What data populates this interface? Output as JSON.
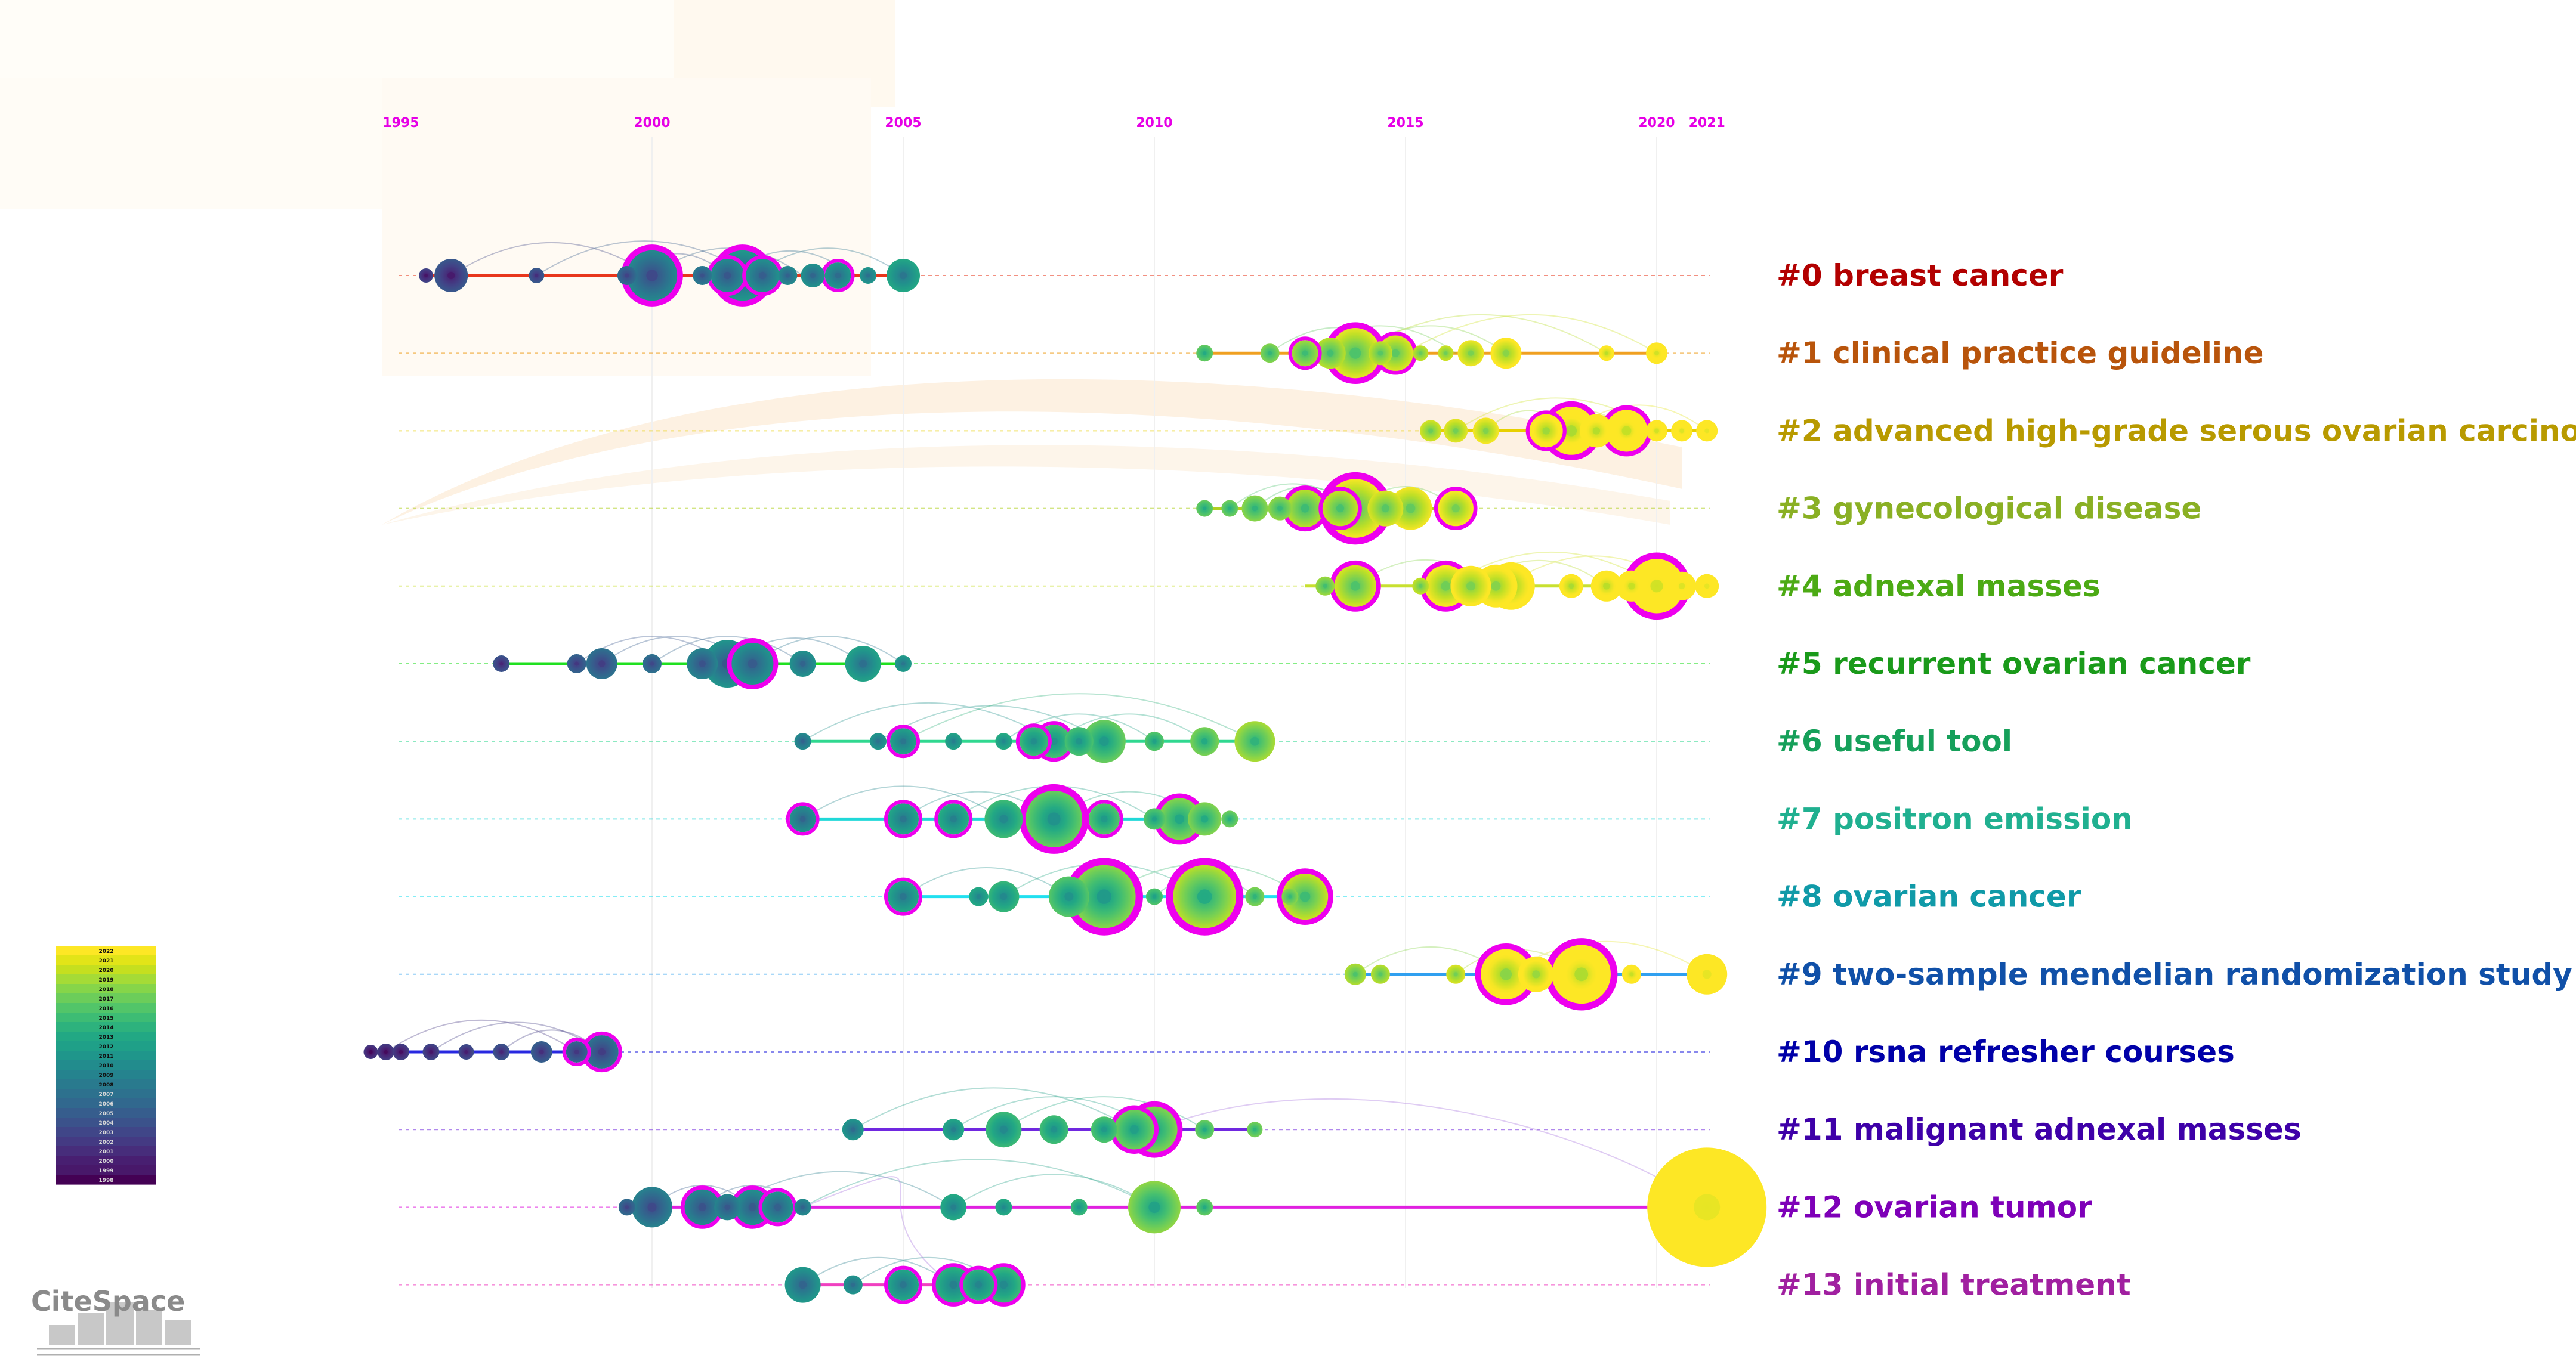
{
  "chart_data": {
    "type": "timeline",
    "axis_years": [
      1995,
      2000,
      2005,
      2010,
      2015,
      2020,
      2021
    ],
    "x_range": [
      1995,
      2021
    ],
    "clusters": [
      {
        "id": "#0",
        "label": "breast cancer",
        "color": "#b20000",
        "line_color": "#e8361c",
        "span": [
          1995.5,
          2005
        ],
        "nodes": [
          [
            1995.5,
            12,
            0
          ],
          [
            1996,
            28,
            0
          ],
          [
            1997.7,
            13,
            0
          ],
          [
            1999.5,
            16,
            0
          ],
          [
            2000,
            44,
            1
          ],
          [
            2001,
            16,
            0
          ],
          [
            2001.5,
            28,
            1
          ],
          [
            2001.8,
            44,
            1
          ],
          [
            2002.2,
            28,
            1
          ],
          [
            2002.7,
            16,
            0
          ],
          [
            2003.2,
            20,
            0
          ],
          [
            2003.7,
            22,
            1
          ],
          [
            2004.3,
            14,
            0
          ],
          [
            2005,
            28,
            0
          ]
        ]
      },
      {
        "id": "#1",
        "label": "clinical practice guideline",
        "color": "#b8540b",
        "line_color": "#f0a020",
        "span": [
          2011,
          2020
        ],
        "nodes": [
          [
            2011,
            14,
            0
          ],
          [
            2012.3,
            16,
            0
          ],
          [
            2013,
            22,
            1
          ],
          [
            2013.5,
            26,
            0
          ],
          [
            2014,
            44,
            1
          ],
          [
            2014.5,
            20,
            0
          ],
          [
            2014.8,
            30,
            1
          ],
          [
            2015.3,
            13,
            0
          ],
          [
            2015.8,
            13,
            0
          ],
          [
            2016.3,
            22,
            0
          ],
          [
            2017,
            26,
            0
          ],
          [
            2019,
            13,
            0
          ],
          [
            2020,
            18,
            0
          ]
        ]
      },
      {
        "id": "#2",
        "label": "advanced high-grade serous ovarian carcinoma",
        "color": "#b89a00",
        "line_color": "#e8d000",
        "span": [
          2015.5,
          2021
        ],
        "nodes": [
          [
            2015.5,
            18,
            0
          ],
          [
            2016,
            20,
            0
          ],
          [
            2016.6,
            22,
            0
          ],
          [
            2017.8,
            28,
            1
          ],
          [
            2018.3,
            42,
            1
          ],
          [
            2018.8,
            28,
            0
          ],
          [
            2019.4,
            36,
            1
          ],
          [
            2020,
            18,
            0
          ],
          [
            2020.5,
            18,
            0
          ],
          [
            2021,
            18,
            0
          ]
        ]
      },
      {
        "id": "#3",
        "label": "gynecological disease",
        "color": "#8ab024",
        "line_color": "#b0d020",
        "span": [
          2011,
          2016
        ],
        "nodes": [
          [
            2011,
            14,
            0
          ],
          [
            2011.5,
            14,
            0
          ],
          [
            2012,
            22,
            0
          ],
          [
            2012.5,
            20,
            0
          ],
          [
            2013,
            32,
            1
          ],
          [
            2013.7,
            30,
            1
          ],
          [
            2014,
            52,
            1
          ],
          [
            2014.6,
            30,
            0
          ],
          [
            2015.1,
            36,
            0
          ],
          [
            2016,
            30,
            1
          ]
        ]
      },
      {
        "id": "#4",
        "label": "adnexal masses",
        "color": "#4caa14",
        "line_color": "#c8e030",
        "span": [
          2013,
          2021
        ],
        "nodes": [
          [
            2013.4,
            16,
            0
          ],
          [
            2014,
            36,
            1
          ],
          [
            2015.3,
            14,
            0
          ],
          [
            2015.8,
            36,
            1
          ],
          [
            2016.3,
            34,
            0
          ],
          [
            2016.8,
            36,
            0
          ],
          [
            2017.1,
            40,
            0
          ],
          [
            2018.3,
            20,
            0
          ],
          [
            2019,
            26,
            0
          ],
          [
            2019.5,
            26,
            0
          ],
          [
            2020,
            48,
            1
          ],
          [
            2020.5,
            24,
            0
          ],
          [
            2021,
            20,
            0
          ]
        ]
      },
      {
        "id": "#5",
        "label": "recurrent ovarian cancer",
        "color": "#1a9a1a",
        "line_color": "#20e020",
        "span": [
          1997,
          2005
        ],
        "nodes": [
          [
            1997,
            14,
            0
          ],
          [
            1998.5,
            16,
            0
          ],
          [
            1999,
            26,
            0
          ],
          [
            2000,
            16,
            0
          ],
          [
            2001,
            26,
            0
          ],
          [
            2001.5,
            40,
            0
          ],
          [
            2002,
            36,
            1
          ],
          [
            2003,
            22,
            0
          ],
          [
            2004.2,
            30,
            0
          ],
          [
            2005,
            14,
            0
          ]
        ]
      },
      {
        "id": "#6",
        "label": "useful tool",
        "color": "#16a05a",
        "line_color": "#30d890",
        "span": [
          2003,
          2012
        ],
        "nodes": [
          [
            2003,
            14,
            0
          ],
          [
            2004.5,
            14,
            0
          ],
          [
            2005,
            22,
            1
          ],
          [
            2006,
            14,
            0
          ],
          [
            2007,
            14,
            0
          ],
          [
            2007.6,
            24,
            1
          ],
          [
            2008,
            28,
            1
          ],
          [
            2008.5,
            24,
            0
          ],
          [
            2009,
            36,
            0
          ],
          [
            2010,
            16,
            0
          ],
          [
            2011,
            24,
            0
          ],
          [
            2012,
            34,
            0
          ]
        ]
      },
      {
        "id": "#7",
        "label": "positron emission",
        "color": "#20b090",
        "line_color": "#20d8d8",
        "span": [
          2003,
          2011
        ],
        "nodes": [
          [
            2003,
            22,
            1
          ],
          [
            2005,
            26,
            1
          ],
          [
            2006,
            26,
            1
          ],
          [
            2007,
            32,
            0
          ],
          [
            2008,
            50,
            1
          ],
          [
            2009,
            26,
            1
          ],
          [
            2010,
            18,
            0
          ],
          [
            2010.5,
            36,
            1
          ],
          [
            2011,
            28,
            0
          ],
          [
            2011.5,
            14,
            0
          ]
        ]
      },
      {
        "id": "#8",
        "label": "ovarian cancer",
        "color": "#109aa8",
        "line_color": "#20e0f0",
        "span": [
          2005,
          2013.5
        ],
        "nodes": [
          [
            2005,
            26,
            1
          ],
          [
            2006.5,
            16,
            0
          ],
          [
            2007,
            26,
            0
          ],
          [
            2008.3,
            34,
            0
          ],
          [
            2009,
            56,
            1
          ],
          [
            2010,
            14,
            0
          ],
          [
            2011,
            56,
            1
          ],
          [
            2012,
            16,
            0
          ],
          [
            2012.7,
            14,
            0
          ],
          [
            2013,
            40,
            1
          ]
        ]
      },
      {
        "id": "#9",
        "label": "two-sample mendelian randomization study",
        "color": "#1050a8",
        "line_color": "#30a0f0",
        "span": [
          2014,
          2021
        ],
        "nodes": [
          [
            2014,
            18,
            0
          ],
          [
            2014.5,
            16,
            0
          ],
          [
            2016,
            16,
            0
          ],
          [
            2017,
            44,
            1
          ],
          [
            2017.6,
            30,
            0
          ],
          [
            2018.5,
            52,
            1
          ],
          [
            2019.5,
            16,
            0
          ],
          [
            2021,
            34,
            0
          ]
        ]
      },
      {
        "id": "#10",
        "label": "rsna refresher courses",
        "color": "#0000a8",
        "line_color": "#2828e0",
        "span": [
          1994.4,
          1999
        ],
        "nodes": [
          [
            1994.4,
            12,
            0
          ],
          [
            1994.7,
            14,
            0
          ],
          [
            1995,
            14,
            0
          ],
          [
            1995.6,
            14,
            0
          ],
          [
            1996.3,
            13,
            0
          ],
          [
            1997,
            14,
            0
          ],
          [
            1997.8,
            18,
            0
          ],
          [
            1998.5,
            18,
            1
          ],
          [
            1999,
            28,
            1
          ]
        ]
      },
      {
        "id": "#11",
        "label": "malignant adnexal masses",
        "color": "#3e00a8",
        "line_color": "#7028e0",
        "span": [
          2004,
          2012
        ],
        "nodes": [
          [
            2004,
            18,
            0
          ],
          [
            2006,
            18,
            0
          ],
          [
            2007,
            30,
            0
          ],
          [
            2008,
            24,
            0
          ],
          [
            2009,
            22,
            0
          ],
          [
            2009.6,
            34,
            1
          ],
          [
            2010,
            40,
            1
          ],
          [
            2011,
            16,
            0
          ],
          [
            2012,
            13,
            0
          ]
        ]
      },
      {
        "id": "#12",
        "label": "ovarian tumor",
        "color": "#7e00b8",
        "line_color": "#e020e0",
        "span": [
          1999.5,
          2021
        ],
        "nodes": [
          [
            1999.5,
            14,
            0
          ],
          [
            2000,
            34,
            0
          ],
          [
            2001,
            30,
            1
          ],
          [
            2001.5,
            22,
            0
          ],
          [
            2002,
            30,
            1
          ],
          [
            2002.5,
            26,
            1
          ],
          [
            2003,
            14,
            0
          ],
          [
            2006,
            22,
            0
          ],
          [
            2007,
            14,
            0
          ],
          [
            2008.5,
            14,
            0
          ],
          [
            2010,
            44,
            0
          ],
          [
            2011,
            14,
            0
          ],
          [
            2021,
            100,
            0
          ]
        ]
      },
      {
        "id": "#13",
        "label": "initial treatment",
        "color": "#a020a0",
        "line_color": "#f040c0",
        "span": [
          2003,
          2007
        ],
        "nodes": [
          [
            2003,
            30,
            0
          ],
          [
            2004,
            16,
            0
          ],
          [
            2005,
            26,
            1
          ],
          [
            2006,
            30,
            1
          ],
          [
            2006.5,
            26,
            1
          ],
          [
            2007,
            30,
            1
          ]
        ]
      }
    ],
    "links": [
      [
        0,
        1999.5,
        2001.5
      ],
      [
        0,
        1996,
        2000
      ],
      [
        0,
        2001.5,
        2004
      ],
      [
        0,
        2000,
        2003
      ],
      [
        0,
        1997.7,
        2002
      ],
      [
        0,
        2002,
        2005
      ],
      [
        1,
        2013,
        2016
      ],
      [
        1,
        2014,
        2017
      ],
      [
        1,
        2012.3,
        2015
      ],
      [
        1,
        2014,
        2019
      ],
      [
        1,
        2015,
        2020
      ],
      [
        2,
        2016.6,
        2018.3
      ],
      [
        2,
        2017.8,
        2019.4
      ],
      [
        2,
        2016,
        2020
      ],
      [
        2,
        2018.3,
        2021
      ],
      [
        3,
        2012,
        2014
      ],
      [
        3,
        2013,
        2015
      ],
      [
        3,
        2011.5,
        2014
      ],
      [
        3,
        2014,
        2016
      ],
      [
        4,
        2014,
        2016.8
      ],
      [
        4,
        2015.8,
        2020
      ],
      [
        4,
        2016.3,
        2019
      ],
      [
        4,
        2017,
        2020.5
      ],
      [
        5,
        1998.5,
        2001.5
      ],
      [
        5,
        1999,
        2002
      ],
      [
        5,
        2000,
        2003
      ],
      [
        5,
        2001.5,
        2004.2
      ],
      [
        5,
        2002,
        2005
      ],
      [
        6,
        2003,
        2008
      ],
      [
        6,
        2004.5,
        2009
      ],
      [
        6,
        2007,
        2010
      ],
      [
        6,
        2008,
        2011
      ],
      [
        6,
        2005,
        2012
      ],
      [
        7,
        2003,
        2007
      ],
      [
        7,
        2005,
        2008
      ],
      [
        7,
        2006,
        2010
      ],
      [
        7,
        2008,
        2011
      ],
      [
        8,
        2005,
        2008.3
      ],
      [
        8,
        2007,
        2011
      ],
      [
        8,
        2009,
        2013
      ],
      [
        8,
        2010,
        2012
      ],
      [
        9,
        2014,
        2017
      ],
      [
        9,
        2016,
        2018.5
      ],
      [
        9,
        2017,
        2021
      ],
      [
        10,
        1994.7,
        1998.5
      ],
      [
        10,
        1995.6,
        1999
      ],
      [
        10,
        1997,
        1999
      ],
      [
        11,
        2004,
        2009.6
      ],
      [
        11,
        2006,
        2010
      ],
      [
        11,
        2007,
        2011
      ],
      [
        12,
        2000,
        2002
      ],
      [
        12,
        2001,
        2003
      ],
      [
        12,
        2003,
        2010
      ],
      [
        12,
        2006,
        2010
      ],
      [
        12,
        2001.5,
        2006
      ],
      [
        13,
        2003,
        2006
      ],
      [
        13,
        2004,
        2007
      ]
    ],
    "cross_links": [
      [
        11,
        2010,
        12,
        2021
      ],
      [
        12,
        2003,
        13,
        2006
      ]
    ],
    "legend": {
      "labels": [
        "2022",
        "2021",
        "2020",
        "2019",
        "2018",
        "2017",
        "2016",
        "2015",
        "2014",
        "2013",
        "2012",
        "2011",
        "2010",
        "2009",
        "2008",
        "2007",
        "2006",
        "2005",
        "2004",
        "2003",
        "2002",
        "2001",
        "2000",
        "1999",
        "1998"
      ],
      "colors": [
        "#fde725",
        "#e2e418",
        "#c5df1f",
        "#a5db36",
        "#86d549",
        "#6ccd5a",
        "#52c569",
        "#3dbc74",
        "#2db27d",
        "#22a884",
        "#1fa088",
        "#1f968b",
        "#228c8d",
        "#25838e",
        "#297a8e",
        "#2d718e",
        "#31688e",
        "#365d8d",
        "#3b528b",
        "#404688",
        "#443a83",
        "#472d7b",
        "#481f71",
        "#48186a",
        "#440154"
      ]
    },
    "colormap": [
      "#440154",
      "#482475",
      "#414487",
      "#355f8d",
      "#2a788e",
      "#21918c",
      "#22a884",
      "#44bf70",
      "#7ad151",
      "#bddf26",
      "#fde725"
    ],
    "ring_color": "#ee00ee"
  },
  "logo": {
    "text": "CiteSpace",
    "color": "#8a8a8a"
  }
}
